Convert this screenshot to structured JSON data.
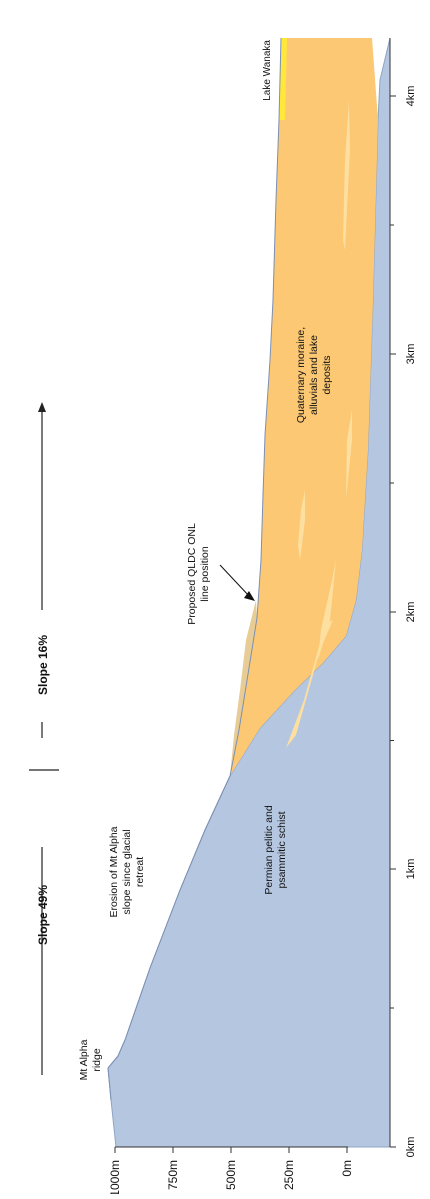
{
  "section": {
    "slopes": [
      {
        "label": "Slope 49%"
      },
      {
        "label": "Slope 16%"
      }
    ],
    "units": [
      {
        "label": "Permian pelitic and"
      },
      {
        "label": "psammitic schist"
      },
      {
        "label": "Quaternary moraine,"
      },
      {
        "label": "alluvials and lake"
      },
      {
        "label": "deposits"
      }
    ],
    "annotations": {
      "ridge": [
        "Mt Alpha",
        "ridge"
      ],
      "erosion": [
        "Erosion of Mt Alpha",
        "slope since glacial",
        "retreat"
      ],
      "qldc": [
        "Proposed QLDC ONL",
        "line position"
      ],
      "lake": "Lake Wanaka"
    },
    "colors": {
      "schist": "#b5c6e0",
      "quaternary": "#fdc874",
      "eroded_zone": "#e8cc96",
      "lake": "#ffe83a"
    }
  },
  "chart_data": {
    "type": "diagram",
    "distance_axis": {
      "ticks": [
        "0km",
        "1km",
        "2km",
        "3km",
        "4km"
      ]
    },
    "elevation_axis": {
      "ticks": [
        "1000m",
        "750m",
        "500m",
        "250m",
        "0m"
      ]
    }
  }
}
